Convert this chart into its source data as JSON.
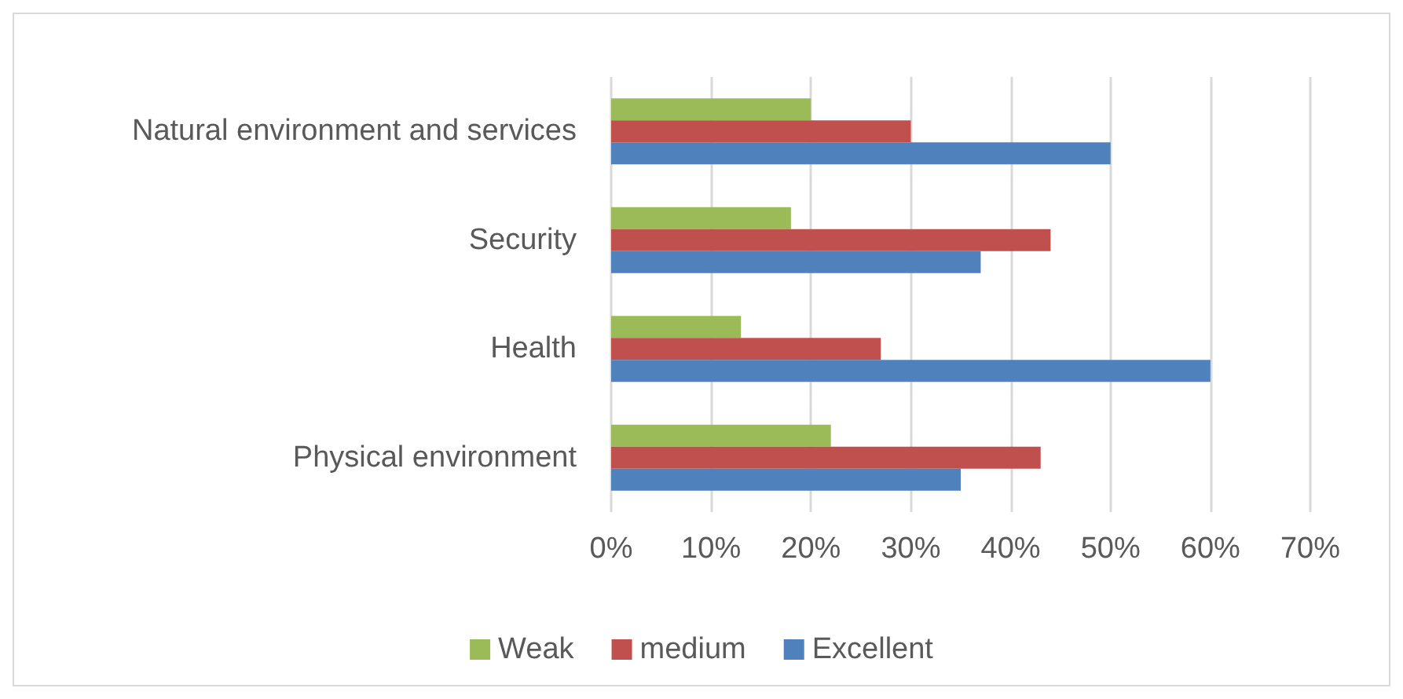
{
  "chart_data": {
    "type": "bar",
    "orientation": "horizontal",
    "categories": [
      "Natural environment and services",
      "Security",
      "Health",
      "Physical environment"
    ],
    "series": [
      {
        "name": "Weak",
        "color": "#9bbb59",
        "values": [
          20,
          18,
          13,
          22
        ]
      },
      {
        "name": "medium",
        "color": "#c0504d",
        "values": [
          30,
          44,
          27,
          43
        ]
      },
      {
        "name": "Excellent",
        "color": "#4f81bd",
        "values": [
          50,
          37,
          60,
          35
        ]
      }
    ],
    "xlim": [
      0,
      70
    ],
    "xticks": [
      {
        "value": 0,
        "label": "0%"
      },
      {
        "value": 10,
        "label": "10%"
      },
      {
        "value": 20,
        "label": "20%"
      },
      {
        "value": 30,
        "label": "30%"
      },
      {
        "value": 40,
        "label": "40%"
      },
      {
        "value": 50,
        "label": "50%"
      },
      {
        "value": 60,
        "label": "60%"
      },
      {
        "value": 70,
        "label": "70%"
      }
    ],
    "grid": "x",
    "legend": "bottom"
  }
}
